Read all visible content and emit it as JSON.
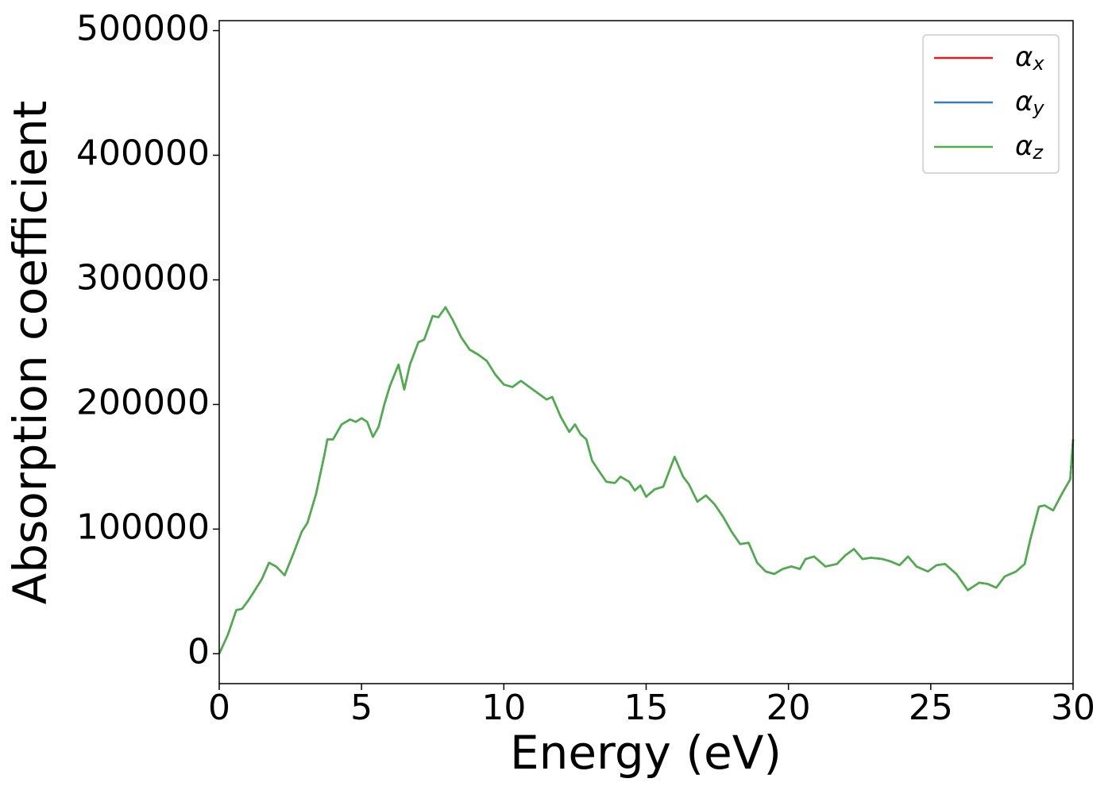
{
  "chart_data": {
    "type": "line",
    "xlabel": "Energy (eV)",
    "ylabel": "Absorption coefficient",
    "x": [
      0,
      0.3,
      0.6,
      0.8,
      1.0,
      1.2,
      1.5,
      1.75,
      2.0,
      2.3,
      2.6,
      2.9,
      3.1,
      3.4,
      3.7,
      3.8,
      4.0,
      4.3,
      4.6,
      4.8,
      5.0,
      5.2,
      5.4,
      5.6,
      5.8,
      6.0,
      6.3,
      6.5,
      6.7,
      7.0,
      7.2,
      7.5,
      7.7,
      7.95,
      8.2,
      8.5,
      8.8,
      9.1,
      9.4,
      9.7,
      10.0,
      10.3,
      10.6,
      10.9,
      11.2,
      11.5,
      11.7,
      12.0,
      12.3,
      12.5,
      12.7,
      12.9,
      13.1,
      13.3,
      13.6,
      13.9,
      14.1,
      14.4,
      14.6,
      14.8,
      15.0,
      15.3,
      15.6,
      16.0,
      16.3,
      16.5,
      16.8,
      17.1,
      17.4,
      17.7,
      18.0,
      18.3,
      18.6,
      18.9,
      19.2,
      19.5,
      19.8,
      20.1,
      20.4,
      20.6,
      20.9,
      21.3,
      21.7,
      22.0,
      22.3,
      22.6,
      22.9,
      23.3,
      23.6,
      23.9,
      24.2,
      24.5,
      24.9,
      25.2,
      25.5,
      25.9,
      26.3,
      26.7,
      27.0,
      27.3,
      27.6,
      28.0,
      28.3,
      28.5,
      28.8,
      29.0,
      29.3,
      29.6,
      29.9,
      30.0
    ],
    "series": [
      {
        "name": "αx",
        "color": "#e41a1c",
        "values": [
          0,
          15000,
          35000,
          36000,
          42000,
          49000,
          60000,
          73000,
          70000,
          63000,
          80000,
          98000,
          105000,
          128000,
          160000,
          172000,
          172000,
          184000,
          188000,
          186000,
          189000,
          186000,
          174000,
          182000,
          200000,
          215000,
          232000,
          212000,
          232000,
          250000,
          252000,
          271000,
          270000,
          278000,
          268000,
          254000,
          244000,
          240000,
          235000,
          224000,
          216000,
          214000,
          219000,
          214000,
          209000,
          204000,
          206000,
          190000,
          178000,
          184000,
          176000,
          172000,
          155000,
          148000,
          138000,
          137000,
          142000,
          138000,
          131000,
          135000,
          126000,
          132000,
          134000,
          158000,
          142000,
          136000,
          122000,
          127000,
          120000,
          110000,
          98000,
          88000,
          89000,
          73000,
          66000,
          64000,
          68000,
          70000,
          68000,
          76000,
          78000,
          70000,
          72000,
          79000,
          84000,
          76000,
          77000,
          76000,
          74000,
          71000,
          78000,
          70000,
          66000,
          71000,
          72000,
          64000,
          51000,
          57000,
          56000,
          53000,
          62000,
          66000,
          72000,
          92000,
          118000,
          119000,
          115000,
          128000,
          140000,
          172000
        ]
      },
      {
        "name": "αy",
        "color": "#377eb8",
        "values": [
          0,
          15000,
          35000,
          36000,
          42000,
          49000,
          60000,
          73000,
          70000,
          63000,
          80000,
          98000,
          105000,
          128000,
          160000,
          172000,
          172000,
          184000,
          188000,
          186000,
          189000,
          186000,
          174000,
          182000,
          200000,
          215000,
          232000,
          212000,
          232000,
          250000,
          252000,
          271000,
          270000,
          278000,
          268000,
          254000,
          244000,
          240000,
          235000,
          224000,
          216000,
          214000,
          219000,
          214000,
          209000,
          204000,
          206000,
          190000,
          178000,
          184000,
          176000,
          172000,
          155000,
          148000,
          138000,
          137000,
          142000,
          138000,
          131000,
          135000,
          126000,
          132000,
          134000,
          158000,
          142000,
          136000,
          122000,
          127000,
          120000,
          110000,
          98000,
          88000,
          89000,
          73000,
          66000,
          64000,
          68000,
          70000,
          68000,
          76000,
          78000,
          70000,
          72000,
          79000,
          84000,
          76000,
          77000,
          76000,
          74000,
          71000,
          78000,
          70000,
          66000,
          71000,
          72000,
          64000,
          51000,
          57000,
          56000,
          53000,
          62000,
          66000,
          72000,
          92000,
          118000,
          119000,
          115000,
          128000,
          140000,
          172000
        ]
      },
      {
        "name": "αz",
        "color": "#4daf4a",
        "values": [
          0,
          15000,
          35000,
          36000,
          42000,
          49000,
          60000,
          73000,
          70000,
          63000,
          80000,
          98000,
          105000,
          128000,
          160000,
          172000,
          172000,
          184000,
          188000,
          186000,
          189000,
          186000,
          174000,
          182000,
          200000,
          215000,
          232000,
          212000,
          232000,
          250000,
          252000,
          271000,
          270000,
          278000,
          268000,
          254000,
          244000,
          240000,
          235000,
          224000,
          216000,
          214000,
          219000,
          214000,
          209000,
          204000,
          206000,
          190000,
          178000,
          184000,
          176000,
          172000,
          155000,
          148000,
          138000,
          137000,
          142000,
          138000,
          131000,
          135000,
          126000,
          132000,
          134000,
          158000,
          142000,
          136000,
          122000,
          127000,
          120000,
          110000,
          98000,
          88000,
          89000,
          73000,
          66000,
          64000,
          68000,
          70000,
          68000,
          76000,
          78000,
          70000,
          72000,
          79000,
          84000,
          76000,
          77000,
          76000,
          74000,
          71000,
          78000,
          70000,
          66000,
          71000,
          72000,
          64000,
          51000,
          57000,
          56000,
          53000,
          62000,
          66000,
          72000,
          92000,
          118000,
          119000,
          115000,
          128000,
          140000,
          172000
        ]
      }
    ],
    "xlim": [
      0,
      30
    ],
    "xticks": [
      0,
      5,
      10,
      15,
      20,
      25,
      30
    ],
    "ylim": [
      -24000,
      508000
    ],
    "yticks": [
      0,
      100000,
      200000,
      300000,
      400000,
      500000
    ],
    "legend": "upper right"
  }
}
